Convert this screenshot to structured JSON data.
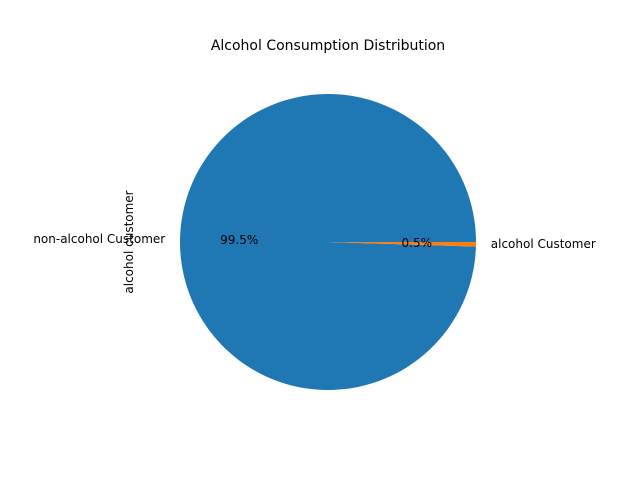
{
  "chart_data": {
    "type": "pie",
    "title": "Alcohol Consumption Distribution",
    "ylabel": "alcohol customer",
    "categories": [
      "non-alcohol Customer",
      "alcohol Customer"
    ],
    "values": [
      99.5,
      0.5
    ],
    "percent_labels": [
      "99.5%",
      "0.5%"
    ],
    "colors": [
      "#1f77b4",
      "#ff7f0e"
    ],
    "start_angle_deg": 0,
    "direction": "counterclockwise",
    "legend": "none"
  }
}
